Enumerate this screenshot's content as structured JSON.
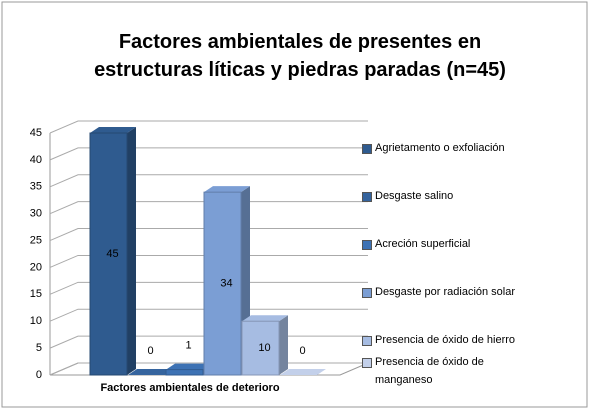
{
  "chart_data": {
    "type": "bar3d",
    "title": "Factores ambientales de presentes en estructuras líticas y piedras paradas (n=45)",
    "categories": [
      "Factores ambientales de deterioro"
    ],
    "series": [
      {
        "name": "Agrietamento o exfoliación",
        "color": "#2f5b8f",
        "values": [
          45
        ]
      },
      {
        "name": "Desgaste salino",
        "color": "#35649e",
        "values": [
          0
        ]
      },
      {
        "name": "Acreción superficial",
        "color": "#3d72b4",
        "values": [
          1
        ]
      },
      {
        "name": "Desgaste por radiación solar",
        "color": "#7b9ed4",
        "values": [
          34
        ]
      },
      {
        "name": "Presencia de óxido de hierro",
        "color": "#a6bce2",
        "values": [
          10
        ]
      },
      {
        "name": "Presencia de óxido de manganeso",
        "color": "#c3d0ea",
        "values": [
          0
        ]
      }
    ],
    "ylim": [
      0,
      45
    ],
    "yticks": [
      0,
      5,
      10,
      15,
      20,
      25,
      30,
      35,
      40,
      45
    ],
    "grid": true,
    "legend": "right"
  }
}
